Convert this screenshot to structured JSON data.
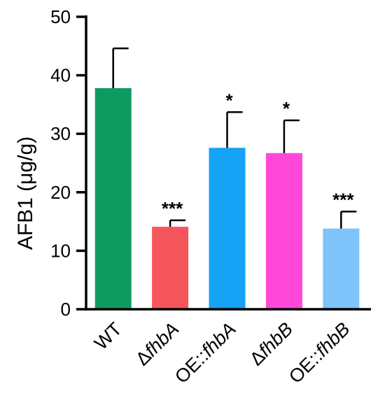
{
  "chart_data": {
    "type": "bar",
    "title": "",
    "xlabel": "",
    "ylabel": "AFB1 (μg/g)",
    "ylim": [
      0,
      50
    ],
    "yticks": [
      0,
      10,
      20,
      30,
      40,
      50
    ],
    "categories": [
      {
        "prefix": "",
        "italic": "",
        "plain": "WT"
      },
      {
        "prefix": "Δ",
        "italic": "fhbA",
        "plain": ""
      },
      {
        "prefix": "OE::",
        "italic": "fhbA",
        "plain": ""
      },
      {
        "prefix": "Δ",
        "italic": "fhbB",
        "plain": ""
      },
      {
        "prefix": "OE::",
        "italic": "fhbB",
        "plain": ""
      }
    ],
    "values": [
      37.8,
      14.1,
      27.6,
      26.7,
      13.8
    ],
    "errors": [
      6.8,
      1.1,
      6.1,
      5.6,
      2.9
    ],
    "significance": [
      "",
      "***",
      "*",
      "*",
      "***"
    ],
    "colors": [
      "#0f9a60",
      "#f4565c",
      "#14a3f5",
      "#ff48da",
      "#7fc3fb"
    ]
  }
}
